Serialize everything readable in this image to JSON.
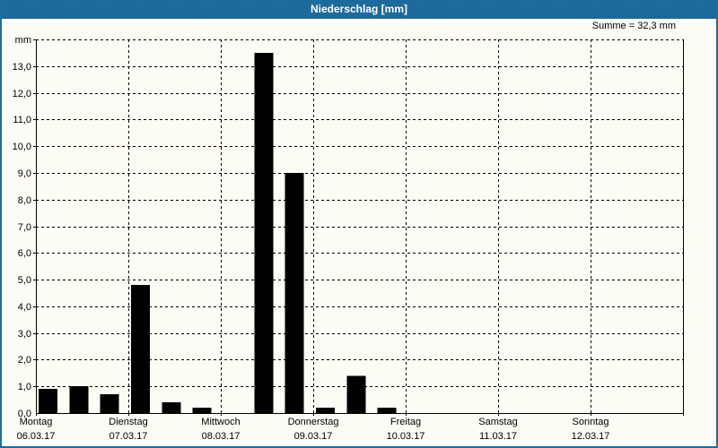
{
  "window": {
    "title": "Niederschlag [mm]",
    "summary_label": "Summe = 32,3 mm",
    "title_bar_color": "#1D6C9E",
    "background_color": "#FCFCF5",
    "border_color": "#1D6C9E"
  },
  "chart_data": {
    "type": "bar",
    "title": "Niederschlag [mm]",
    "ylabel": "mm",
    "unit_top_label": "mm",
    "ylim": [
      0,
      14
    ],
    "ytick_step": 1.0,
    "ytick_labels": [
      "0,0",
      "1,0",
      "2,0",
      "3,0",
      "4,0",
      "5,0",
      "6,0",
      "7,0",
      "8,0",
      "9,0",
      "10,0",
      "11,0",
      "12,0",
      "13,0"
    ],
    "grid": "dashed",
    "bar_color": "#000000",
    "bars_per_day": 3,
    "days": [
      {
        "weekday": "Montag",
        "date": "06.03.17",
        "values": [
          0.9,
          1.0,
          0.7
        ]
      },
      {
        "weekday": "Dienstag",
        "date": "07.03.17",
        "values": [
          4.8,
          0.4,
          0.2
        ]
      },
      {
        "weekday": "Mittwoch",
        "date": "08.03.17",
        "values": [
          0.0,
          13.5,
          9.0
        ]
      },
      {
        "weekday": "Donnerstag",
        "date": "09.03.17",
        "values": [
          0.2,
          1.4,
          0.2
        ]
      },
      {
        "weekday": "Freitag",
        "date": "10.03.17",
        "values": [
          0.0,
          0.0,
          0.0
        ]
      },
      {
        "weekday": "Samstag",
        "date": "11.03.17",
        "values": [
          0.0,
          0.0,
          0.0
        ]
      },
      {
        "weekday": "Sonntag",
        "date": "12.03.17",
        "values": [
          0.0,
          0.0,
          0.0
        ]
      }
    ],
    "sum_mm": 32.3
  }
}
